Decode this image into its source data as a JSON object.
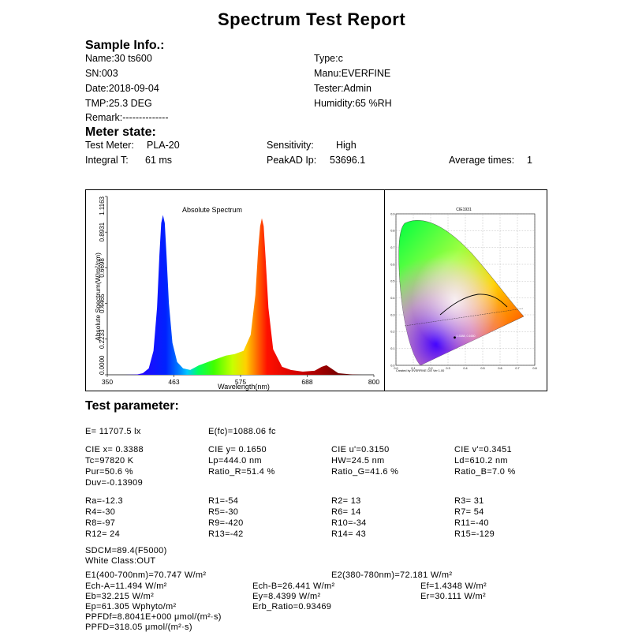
{
  "title": "Spectrum  Test Report",
  "sample": {
    "heading": "Sample Info.:",
    "name": "Name:30 ts600",
    "sn": "SN:003",
    "date": "Date:2018-09-04",
    "tmp": "TMP:25.3 DEG",
    "remark": "Remark:--------------",
    "type": "Type:c",
    "manu": "Manu:EVERFINE",
    "tester": "Tester:Admin",
    "humidity": "Humidity:65 %RH"
  },
  "meter": {
    "heading": "Meter state:",
    "test_meter_label": "Test Meter:",
    "test_meter_value": "PLA-20",
    "sensitivity_label": "Sensitivity:",
    "sensitivity_value": "High",
    "integral_label": "Integral T:",
    "integral_value": "61 ms",
    "peakad_label": "PeakAD Ip:",
    "peakad_value": "53696.1",
    "avg_label": "Average times:",
    "avg_value": "1"
  },
  "chart_data": [
    {
      "type": "area",
      "title": "Absolute Spectrum",
      "xlabel": "Wavelength(nm)",
      "ylabel": "Absolute Spectrum(W/m²/nm)",
      "xlim": [
        350,
        800
      ],
      "ylim": [
        0,
        1.1163
      ],
      "x_ticks": [
        "350",
        "463",
        "575",
        "688",
        "800"
      ],
      "y_ticks": [
        "0.0000",
        "0.2233",
        "0.4465",
        "0.6698",
        "0.8931",
        "1.1163"
      ],
      "x": [
        380,
        400,
        410,
        420,
        428,
        434,
        438,
        441,
        444,
        447,
        450,
        454,
        460,
        468,
        478,
        490,
        505,
        520,
        535,
        550,
        565,
        580,
        592,
        600,
        605,
        608,
        611,
        614,
        617,
        622,
        630,
        645,
        660,
        680,
        700,
        712,
        720,
        728,
        740,
        760,
        780
      ],
      "values": [
        0.0,
        0.002,
        0.01,
        0.04,
        0.15,
        0.42,
        0.75,
        0.95,
        1.0,
        0.95,
        0.75,
        0.45,
        0.2,
        0.08,
        0.04,
        0.03,
        0.06,
        0.08,
        0.1,
        0.12,
        0.13,
        0.15,
        0.25,
        0.5,
        0.8,
        0.93,
        0.98,
        0.93,
        0.75,
        0.42,
        0.16,
        0.05,
        0.03,
        0.02,
        0.025,
        0.05,
        0.06,
        0.04,
        0.01,
        0.003,
        0.0
      ],
      "grid": false
    },
    {
      "type": "scatter",
      "title": "CIE1931",
      "footer": "Created by EVERFINE CIE Ver 1.00",
      "xlim": [
        0,
        0.8
      ],
      "ylim": [
        0,
        0.9
      ],
      "x_ticks": [
        "0.0",
        "0.1",
        "0.2",
        "0.3",
        "0.4",
        "0.5",
        "0.6",
        "0.7",
        "0.8"
      ],
      "y_ticks": [
        "0.0",
        "0.1",
        "0.2",
        "0.3",
        "0.4",
        "0.5",
        "0.6",
        "0.7",
        "0.8",
        "0.9"
      ],
      "point_label": "0.3388, 0.1650",
      "point": [
        0.3388,
        0.165
      ],
      "grid": true
    }
  ],
  "params": {
    "heading": "Test parameter:",
    "E": "E=  11707.5 lx",
    "Efc": "E(fc)=1088.06 fc",
    "cie_x": "CIE x= 0.3388",
    "cie_y": "CIE y= 0.1650",
    "cie_u": "CIE u'=0.3150",
    "cie_v": "CIE v'=0.3451",
    "tc": "Tc=97820 K",
    "lp": "Lp=444.0 nm",
    "hw": "HW=24.5 nm",
    "ld": "Ld=610.2 nm",
    "pur": "Pur=50.6 %",
    "ratio_r": "Ratio_R=51.4 %",
    "ratio_g": "Ratio_G=41.6 %",
    "ratio_b": "Ratio_B=7.0 %",
    "duv": "Duv=-0.13909",
    "ra": "Ra=-12.3",
    "r1": "R1=-54",
    "r2": "R2= 13",
    "r3": "R3= 31",
    "r4": "R4=-30",
    "r5": "R5=-30",
    "r6": "R6= 14",
    "r7": "R7= 54",
    "r8": "R8=-97",
    "r9": "R9=-420",
    "r10": "R10=-34",
    "r11": "R11=-40",
    "r12": "R12= 24",
    "r13": "R13=-42",
    "r14": "R14= 43",
    "r15": "R15=-129",
    "sdcm": "SDCM=89.4(F5000)",
    "white_class": "White Class:OUT",
    "e1": "E1(400-700nm)=70.747 W/m²",
    "e2": "E2(380-780nm)=72.181 W/m²",
    "ech_a": "Ech-A=11.494 W/m²",
    "ech_b": "Ech-B=26.441 W/m²",
    "ef": "Ef=1.4348 W/m²",
    "eb": "Eb=32.215 W/m²",
    "ey": "Ey=8.4399 W/m²",
    "er": "Er=30.111 W/m²",
    "ep": "Ep=61.305 Wphyto/m²",
    "erb_ratio": "Erb_Ratio=0.93469",
    "ppfdf": "PPFDf=8.8041E+000 μmol/(m²·s)",
    "ppfd": "PPFD=318.05 μmol/(m²·s)"
  }
}
